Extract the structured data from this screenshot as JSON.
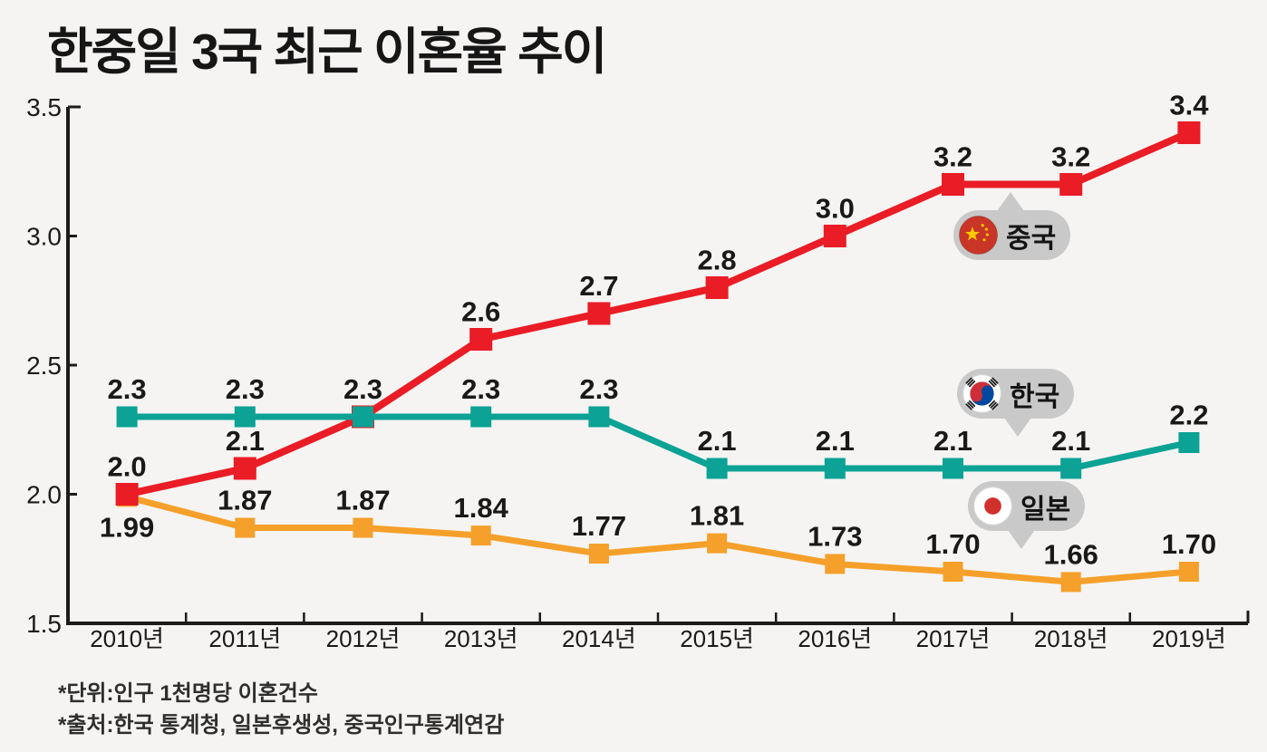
{
  "title": "한중일 3국 최근 이혼율 추이",
  "footnotes": [
    "*단위:인구 1천명당 이혼건수",
    "*출처:한국 통계청, 일본후생성, 중국인구통계연감"
  ],
  "legend": {
    "china": {
      "label": "중국"
    },
    "korea": {
      "label": "한국"
    },
    "japan": {
      "label": "일본"
    }
  },
  "colors": {
    "china_line": "#ea1c25",
    "korea_line": "#0ca295",
    "japan_line": "#f5a02b",
    "bubble_gray": "#c9c9c9",
    "axis": "#1c1c1c"
  },
  "chart_data": {
    "type": "line",
    "title": "한중일 3국 최근 이혼율 추이",
    "unit_note": "인구 1천명당 이혼건수",
    "categories": [
      "2010년",
      "2011년",
      "2012년",
      "2013년",
      "2014년",
      "2015년",
      "2016년",
      "2017년",
      "2018년",
      "2019년"
    ],
    "ylim": [
      1.5,
      3.5
    ],
    "yticks": [
      1.5,
      2.0,
      2.5,
      3.0,
      3.5
    ],
    "grid": false,
    "legend_position": "inline-bubbles",
    "series": [
      {
        "name": "일본",
        "color": "#f5a02b",
        "values": [
          1.99,
          1.87,
          1.87,
          1.84,
          1.77,
          1.81,
          1.73,
          1.7,
          1.66,
          1.7
        ],
        "labels": [
          "1.99",
          "1.87",
          "1.87",
          "1.84",
          "1.77",
          "1.81",
          "1.73",
          "1.70",
          "1.66",
          "1.70"
        ],
        "label_sides": [
          "below",
          "above",
          "above",
          "above",
          "above",
          "above",
          "above",
          "above",
          "above",
          "above"
        ]
      },
      {
        "name": "중국",
        "color": "#ea1c25",
        "values": [
          2.0,
          2.1,
          2.3,
          2.6,
          2.7,
          2.8,
          3.0,
          3.2,
          3.2,
          3.4
        ],
        "labels": [
          "2.0",
          "2.1",
          "",
          "2.6",
          "2.7",
          "2.8",
          "3.0",
          "3.2",
          "3.2",
          "3.4"
        ]
      },
      {
        "name": "한국",
        "color": "#0ca295",
        "values": [
          2.3,
          2.3,
          2.3,
          2.3,
          2.3,
          2.1,
          2.1,
          2.1,
          2.1,
          2.2
        ],
        "labels": [
          "2.3",
          "2.3",
          "2.3",
          "2.3",
          "2.3",
          "2.1",
          "2.1",
          "2.1",
          "2.1",
          "2.2"
        ]
      }
    ]
  }
}
